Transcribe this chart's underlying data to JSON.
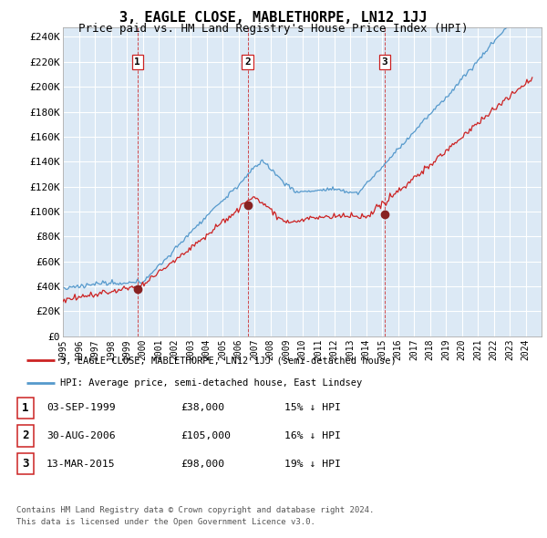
{
  "title": "3, EAGLE CLOSE, MABLETHORPE, LN12 1JJ",
  "subtitle": "Price paid vs. HM Land Registry's House Price Index (HPI)",
  "ylabel_ticks": [
    "£0",
    "£20K",
    "£40K",
    "£60K",
    "£80K",
    "£100K",
    "£120K",
    "£140K",
    "£160K",
    "£180K",
    "£200K",
    "£220K",
    "£240K"
  ],
  "ylim": [
    0,
    248000
  ],
  "sale_year_nums": [
    1999.67,
    2006.58,
    2015.17
  ],
  "sale_prices": [
    38000,
    105000,
    98000
  ],
  "sale_labels": [
    "1",
    "2",
    "3"
  ],
  "legend_red": "3, EAGLE CLOSE, MABLETHORPE, LN12 1JJ (semi-detached house)",
  "legend_blue": "HPI: Average price, semi-detached house, East Lindsey",
  "table_rows": [
    [
      "1",
      "03-SEP-1999",
      "£38,000",
      "15% ↓ HPI"
    ],
    [
      "2",
      "30-AUG-2006",
      "£105,000",
      "16% ↓ HPI"
    ],
    [
      "3",
      "13-MAR-2015",
      "£98,000",
      "19% ↓ HPI"
    ]
  ],
  "footnote1": "Contains HM Land Registry data © Crown copyright and database right 2024.",
  "footnote2": "This data is licensed under the Open Government Licence v3.0.",
  "bg_color": "#ffffff",
  "plot_bg_color": "#dce9f5",
  "grid_color": "#ffffff",
  "red_color": "#cc2222",
  "blue_color": "#5599cc",
  "dashed_line_color": "#cc2222",
  "border_color": "#aaaaaa",
  "title_fontsize": 11,
  "subtitle_fontsize": 9
}
